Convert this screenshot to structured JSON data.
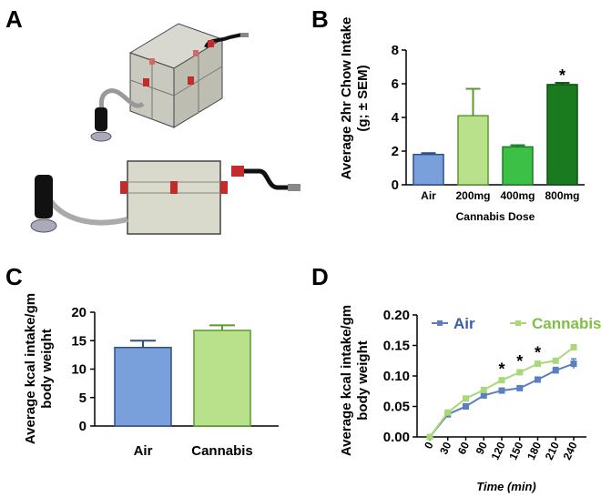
{
  "panels": {
    "a": "A",
    "b": "B",
    "c": "C",
    "d": "D"
  },
  "colors": {
    "air": "#7aa0dc",
    "air_stroke": "#2e4f8c",
    "cannabis": "#b9e08a",
    "cannabis_stroke": "#5c9a2c",
    "dose400": "#3cc046",
    "dose400_stroke": "#1f7a2a",
    "dose800": "#1a7a1f",
    "dose800_stroke": "#0e4f12",
    "line_air": "#5b7fbf",
    "line_cannabis": "#a9d879"
  },
  "chart_data": [
    {
      "panel": "B",
      "type": "bar",
      "categories": [
        "Air",
        "200mg",
        "400mg",
        "800mg"
      ],
      "values": [
        1.8,
        4.1,
        2.25,
        5.95
      ],
      "errors": [
        0.08,
        1.6,
        0.1,
        0.1
      ],
      "significant": [
        false,
        false,
        false,
        true
      ],
      "star": "*",
      "xlabel": "Cannabis Dose",
      "ylabel_line1": "Average 2hr Chow Intake",
      "ylabel_line2": "(g; ± SEM)",
      "ylim": [
        0,
        8
      ],
      "yticks": [
        "0",
        "2",
        "4",
        "6",
        "8"
      ]
    },
    {
      "panel": "C",
      "type": "bar",
      "categories": [
        "Air",
        "Cannabis"
      ],
      "values": [
        13.8,
        16.8
      ],
      "errors": [
        1.2,
        0.9
      ],
      "ylabel_line1": "Average kcal intake/gm",
      "ylabel_line2": "body weight",
      "ylim": [
        0,
        20
      ],
      "yticks": [
        "0",
        "5",
        "10",
        "15",
        "20"
      ]
    },
    {
      "panel": "D",
      "type": "line",
      "x": [
        0,
        30,
        60,
        90,
        120,
        150,
        180,
        210,
        240
      ],
      "xticks": [
        "0",
        "30",
        "60",
        "90",
        "120",
        "150",
        "180",
        "210",
        "240"
      ],
      "series": [
        {
          "name": "Air",
          "values": [
            0.0,
            0.037,
            0.05,
            0.068,
            0.076,
            0.08,
            0.094,
            0.109,
            0.12
          ],
          "errors": [
            0,
            0.002,
            0.002,
            0.003,
            0.003,
            0.003,
            0.004,
            0.005,
            0.008
          ]
        },
        {
          "name": "Cannabis",
          "values": [
            0.0,
            0.04,
            0.063,
            0.077,
            0.093,
            0.106,
            0.12,
            0.125,
            0.147
          ],
          "errors": [
            0,
            0.002,
            0.002,
            0.002,
            0.003,
            0.003,
            0.003,
            0.003,
            0.004
          ]
        }
      ],
      "star_x": [
        120,
        150,
        180
      ],
      "star": "*",
      "xlabel": "Time (min)",
      "ylabel_line1": "Average kcal intake/gm",
      "ylabel_line2": "body weight",
      "ylim": [
        0,
        0.2
      ],
      "yticks": [
        "0.00",
        "0.05",
        "0.10",
        "0.15",
        "0.20"
      ],
      "legend_position": "top"
    }
  ]
}
